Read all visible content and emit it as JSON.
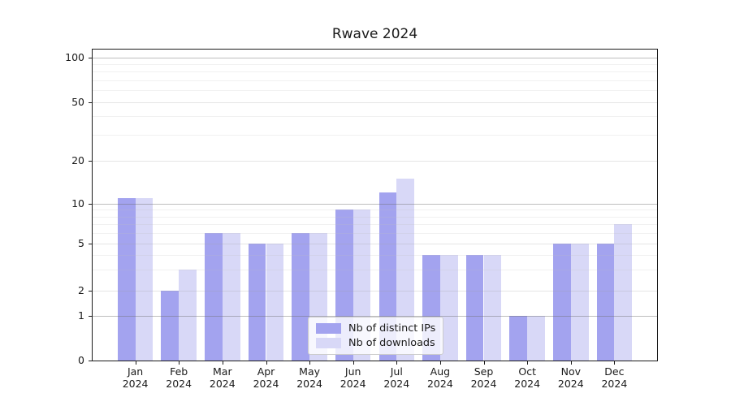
{
  "title": "Rwave 2024",
  "chart_data": {
    "type": "bar",
    "title": "Rwave 2024",
    "categories": [
      "Jan 2024",
      "Feb 2024",
      "Mar 2024",
      "Apr 2024",
      "May 2024",
      "Jun 2024",
      "Jul 2024",
      "Aug 2024",
      "Sep 2024",
      "Oct 2024",
      "Nov 2024",
      "Dec 2024"
    ],
    "series": [
      {
        "name": "Nb of distinct IPs",
        "color": "#a3a3ef",
        "values": [
          11,
          2,
          6,
          5,
          6,
          9,
          12,
          4,
          4,
          1,
          5,
          5
        ]
      },
      {
        "name": "Nb of downloads",
        "color": "#d8d8f7",
        "values": [
          11,
          3,
          6,
          5,
          6,
          9,
          15,
          4,
          4,
          1,
          5,
          7
        ]
      }
    ],
    "xlabel": "",
    "ylabel": "",
    "y_axis_scale": "log-like with zero baseline",
    "y_tick_labels": [
      "100",
      "50",
      "20",
      "10",
      "5",
      "2",
      "1",
      "0"
    ],
    "y_tick_values": [
      100,
      50,
      20,
      10,
      5,
      2,
      1,
      0
    ],
    "ylim": [
      0,
      120
    ],
    "grid": true,
    "legend_position": "bottom-center"
  }
}
